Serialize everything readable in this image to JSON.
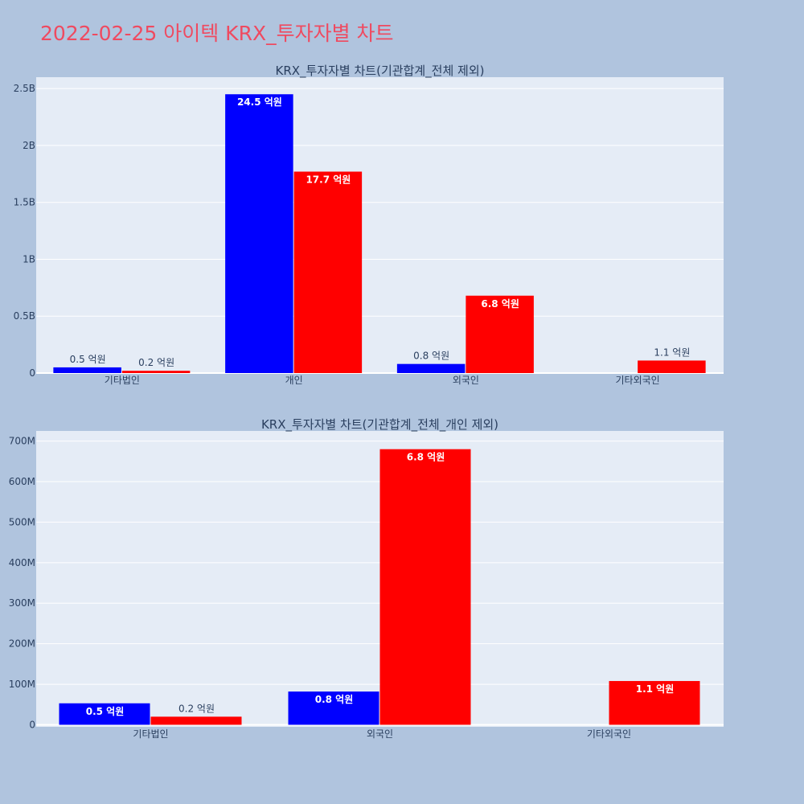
{
  "page": {
    "title": "2022-02-25 아이텍 KRX_투자자별 차트"
  },
  "colors": {
    "background": "#b0c4de",
    "plot_background": "#e5ecf6",
    "title": "#ef4a60",
    "buy": "#0000ff",
    "sell": "#ff0000",
    "text": "#2a3f5f"
  },
  "chart_data": [
    {
      "type": "bar",
      "title": "KRX_투자자별 차트(기관합계_전체 제외)",
      "categories": [
        "기타법인",
        "개인",
        "외국인",
        "기타외국인"
      ],
      "series": [
        {
          "color": "#0000ff",
          "values": [
            50000000,
            2450000000,
            80000000,
            0
          ],
          "labels": [
            "0.5 억원",
            "24.5 억원",
            "0.8 억원",
            ""
          ]
        },
        {
          "color": "#ff0000",
          "values": [
            20000000,
            1770000000,
            680000000,
            110000000
          ],
          "labels": [
            "0.2 억원",
            "17.7 억원",
            "6.8 억원",
            "1.1 억원"
          ]
        }
      ],
      "ylim": [
        0,
        2600000000
      ],
      "yticks": [
        0,
        500000000,
        1000000000,
        1500000000,
        2000000000,
        2500000000
      ],
      "ytick_labels": [
        "0",
        "0.5B",
        "1B",
        "1.5B",
        "2B",
        "2.5B"
      ],
      "grid": true,
      "legend": "none"
    },
    {
      "type": "bar",
      "title": "KRX_투자자별 차트(기관합계_전체_개인 제외)",
      "categories": [
        "기타법인",
        "외국인",
        "기타외국인"
      ],
      "series": [
        {
          "color": "#0000ff",
          "values": [
            53000000,
            82000000,
            0
          ],
          "labels": [
            "0.5 억원",
            "0.8 억원",
            ""
          ]
        },
        {
          "color": "#ff0000",
          "values": [
            20000000,
            680000000,
            108000000
          ],
          "labels": [
            "0.2 억원",
            "6.8 억원",
            "1.1 억원"
          ]
        }
      ],
      "ylim": [
        -5000000,
        725000000
      ],
      "yticks": [
        0,
        100000000,
        200000000,
        300000000,
        400000000,
        500000000,
        600000000,
        700000000
      ],
      "ytick_labels": [
        "0",
        "100M",
        "200M",
        "300M",
        "400M",
        "500M",
        "600M",
        "700M"
      ],
      "grid": true,
      "legend": "none"
    }
  ]
}
